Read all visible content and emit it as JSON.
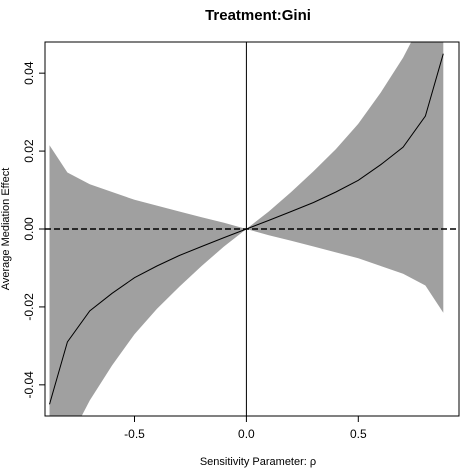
{
  "chart_data": {
    "type": "line",
    "title": "Treatment:Gini",
    "xlabel": "Sensitivity Parameter: ρ",
    "ylabel": "Average Mediation Effect",
    "xlim": [
      -0.9,
      0.95
    ],
    "ylim": [
      -0.048,
      0.048
    ],
    "x_ticks": [
      -0.5,
      0.0,
      0.5
    ],
    "x_tick_labels": [
      "-0.5",
      "0.0",
      "0.5"
    ],
    "y_ticks": [
      -0.04,
      -0.02,
      0.0,
      0.02,
      0.04
    ],
    "y_tick_labels": [
      "-0.04",
      "-0.02",
      "0.00",
      "0.02",
      "0.04"
    ],
    "grid": false,
    "colors": {
      "band": "#a0a0a0",
      "line": "#000000"
    },
    "series": [
      {
        "role": "estimate",
        "x": [
          -0.88,
          -0.8,
          -0.7,
          -0.6,
          -0.5,
          -0.4,
          -0.3,
          -0.2,
          -0.1,
          0.0,
          0.1,
          0.2,
          0.3,
          0.4,
          0.5,
          0.6,
          0.7,
          0.8,
          0.88
        ],
        "values": [
          -0.045,
          -0.029,
          -0.021,
          -0.0165,
          -0.0125,
          -0.0095,
          -0.0068,
          -0.0045,
          -0.0022,
          0.0,
          0.0022,
          0.0045,
          0.0068,
          0.0095,
          0.0125,
          0.0165,
          0.021,
          0.029,
          0.045
        ]
      },
      {
        "role": "ci_upper",
        "x": [
          -0.88,
          -0.8,
          -0.7,
          -0.6,
          -0.5,
          -0.4,
          -0.3,
          -0.2,
          -0.1,
          0.0,
          0.1,
          0.2,
          0.3,
          0.4,
          0.5,
          0.6,
          0.7,
          0.8,
          0.88
        ],
        "values": [
          0.0215,
          0.0145,
          0.0115,
          0.0095,
          0.0075,
          0.006,
          0.0045,
          0.003,
          0.0016,
          0.0,
          0.0045,
          0.0095,
          0.0148,
          0.0205,
          0.027,
          0.035,
          0.044,
          0.055,
          0.066
        ]
      },
      {
        "role": "ci_lower",
        "x": [
          -0.88,
          -0.8,
          -0.7,
          -0.6,
          -0.5,
          -0.4,
          -0.3,
          -0.2,
          -0.1,
          0.0,
          0.1,
          0.2,
          0.3,
          0.4,
          0.5,
          0.6,
          0.7,
          0.8,
          0.88
        ],
        "values": [
          -0.066,
          -0.055,
          -0.044,
          -0.035,
          -0.027,
          -0.0205,
          -0.0148,
          -0.0095,
          -0.0045,
          0.0,
          -0.0016,
          -0.003,
          -0.0045,
          -0.006,
          -0.0075,
          -0.0095,
          -0.0115,
          -0.0145,
          -0.0215
        ]
      }
    ],
    "reference_lines": {
      "vertical_x": 0.0,
      "horizontal_y": 0.0,
      "horizontal_style": "dashed"
    }
  }
}
